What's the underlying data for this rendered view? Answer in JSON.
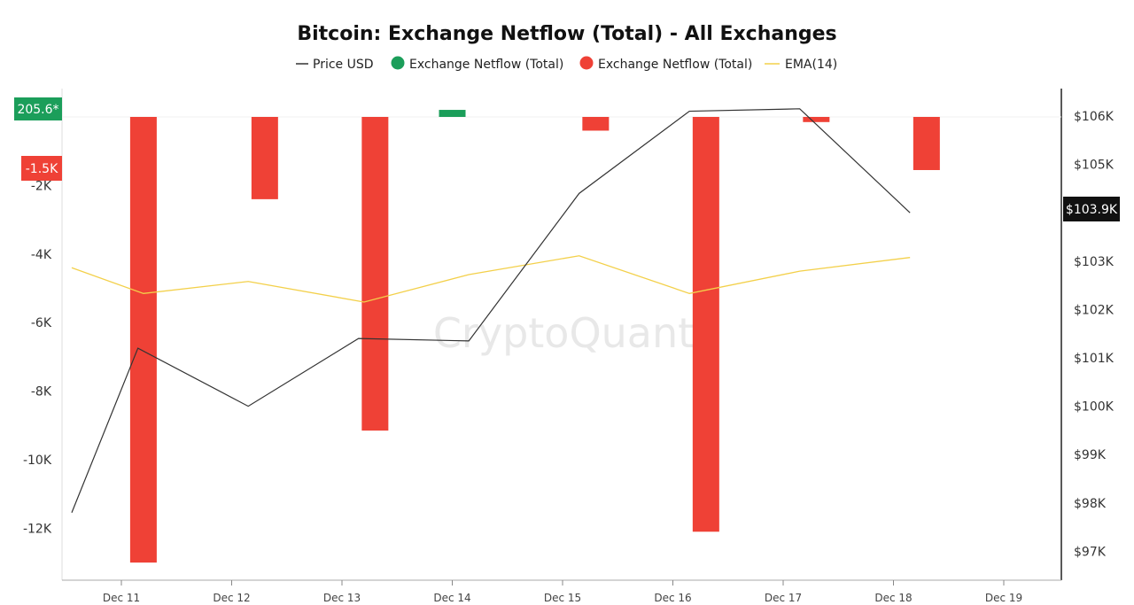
{
  "chart_data": {
    "type": "bar",
    "title": "Bitcoin: Exchange Netflow (Total) - All Exchanges",
    "watermark": "CryptoQuant",
    "legend": [
      {
        "label": "Price USD",
        "marker": "line",
        "color": "#333333"
      },
      {
        "label": "Exchange Netflow (Total)",
        "marker": "dot",
        "color": "#1b9e5a"
      },
      {
        "label": "Exchange Netflow (Total)",
        "marker": "dot",
        "color": "#ef4136"
      },
      {
        "label": "EMA(14)",
        "marker": "line",
        "color": "#f3d04a"
      }
    ],
    "x_ticks": [
      "Dec 11",
      "Dec 12",
      "Dec 13",
      "Dec 14",
      "Dec 15",
      "Dec 16",
      "Dec 17",
      "Dec 18",
      "Dec 19"
    ],
    "left_axis": {
      "ticks": [
        "-2K",
        "-4K",
        "-6K",
        "-8K",
        "-10K",
        "-12K"
      ],
      "tick_values": [
        -2000,
        -4000,
        -6000,
        -8000,
        -10000,
        -12000
      ],
      "ylim": [
        -13800,
        400
      ]
    },
    "right_axis": {
      "ticks": [
        "$106K",
        "$105K",
        "$104K",
        "$103K",
        "$102K",
        "$101K",
        "$100K",
        "$99K",
        "$98K",
        "$97K"
      ],
      "tick_values": [
        106000,
        105000,
        104000,
        103000,
        102000,
        101000,
        100000,
        99000,
        98000,
        97000
      ],
      "ylim": [
        96000,
        106600
      ]
    },
    "netflow": {
      "positive_color": "#1b9e5a",
      "negative_color": "#ef4136",
      "bars": [
        {
          "x": 11.2,
          "value": -13000
        },
        {
          "x": 12.3,
          "value": -2400
        },
        {
          "x": 13.3,
          "value": -9150
        },
        {
          "x": 14.0,
          "value": 205.6
        },
        {
          "x": 15.3,
          "value": -400
        },
        {
          "x": 16.3,
          "value": -12100
        },
        {
          "x": 17.3,
          "value": -150
        },
        {
          "x": 18.3,
          "value": -1550
        }
      ]
    },
    "price": {
      "color": "#333333",
      "x": [
        10.55,
        11.15,
        12.15,
        13.15,
        14.15,
        15.15,
        16.15,
        17.15,
        18.15
      ],
      "values": [
        97800,
        101200,
        100000,
        101400,
        101350,
        104400,
        106100,
        106150,
        104000
      ]
    },
    "ema": {
      "color": "#f3d04a",
      "x": [
        10.55,
        11.2,
        12.15,
        13.2,
        14.15,
        15.15,
        16.15,
        17.15,
        18.15
      ],
      "values": [
        -4400,
        -5150,
        -4800,
        -5400,
        -4600,
        -4050,
        -5150,
        -4500,
        -4100
      ]
    },
    "badges": {
      "left_green": {
        "label": "205.6*",
        "value": 205.6,
        "color": "#1b9e5a"
      },
      "left_red": {
        "label": "-1.5K",
        "value": -1500,
        "color": "#ef4136"
      },
      "right_price": {
        "label": "$103.9K",
        "value": 103900,
        "color": "#111111"
      }
    }
  }
}
